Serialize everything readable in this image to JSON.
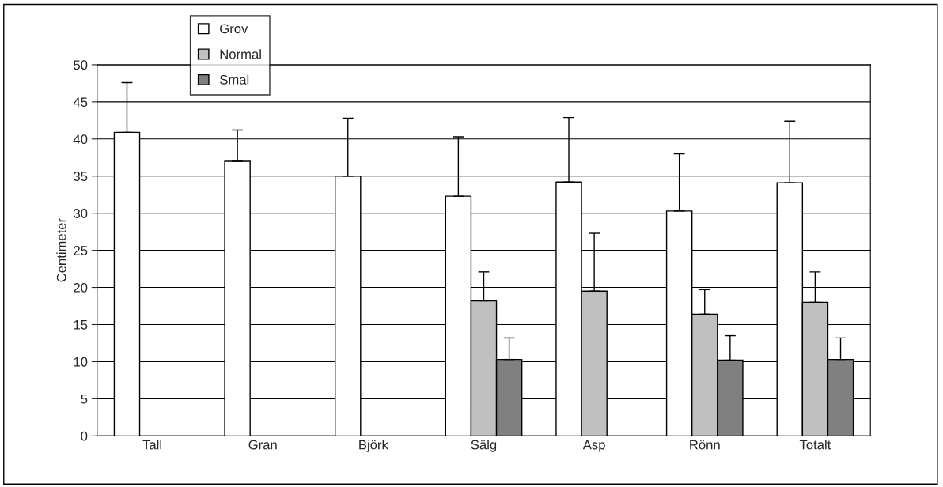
{
  "chart_data": {
    "type": "bar",
    "ylabel": "Centimeter",
    "categories": [
      "Tall",
      "Gran",
      "Björk",
      "Sälg",
      "Asp",
      "Rönn",
      "Totalt"
    ],
    "series": [
      {
        "name": "Grov",
        "color": "#ffffff",
        "values": [
          40.9,
          37.0,
          35.0,
          32.3,
          34.2,
          30.3,
          34.1
        ],
        "errors": [
          [
            40.9,
            47.6
          ],
          [
            37.0,
            41.2
          ],
          [
            35.0,
            42.8
          ],
          [
            32.3,
            40.3
          ],
          [
            34.2,
            42.9
          ],
          [
            30.3,
            38.0
          ],
          [
            34.1,
            42.4
          ]
        ]
      },
      {
        "name": "Normal",
        "color": "#c0c0c0",
        "values": [
          null,
          null,
          null,
          18.2,
          19.5,
          16.4,
          18.0
        ],
        "errors": [
          null,
          null,
          null,
          [
            18.2,
            22.1
          ],
          [
            19.5,
            27.3
          ],
          [
            16.4,
            19.7
          ],
          [
            18.0,
            22.1
          ]
        ]
      },
      {
        "name": "Smal",
        "color": "#808080",
        "values": [
          null,
          null,
          null,
          10.3,
          null,
          10.2,
          10.3
        ],
        "errors": [
          null,
          null,
          null,
          [
            10.3,
            13.2
          ],
          null,
          [
            10.2,
            13.5
          ],
          [
            10.3,
            13.2
          ]
        ]
      }
    ],
    "ylim": [
      0,
      50
    ],
    "yticks": [
      0,
      5,
      10,
      15,
      20,
      25,
      30,
      35,
      40,
      45,
      50
    ],
    "grid": "y",
    "legend": "top left"
  }
}
